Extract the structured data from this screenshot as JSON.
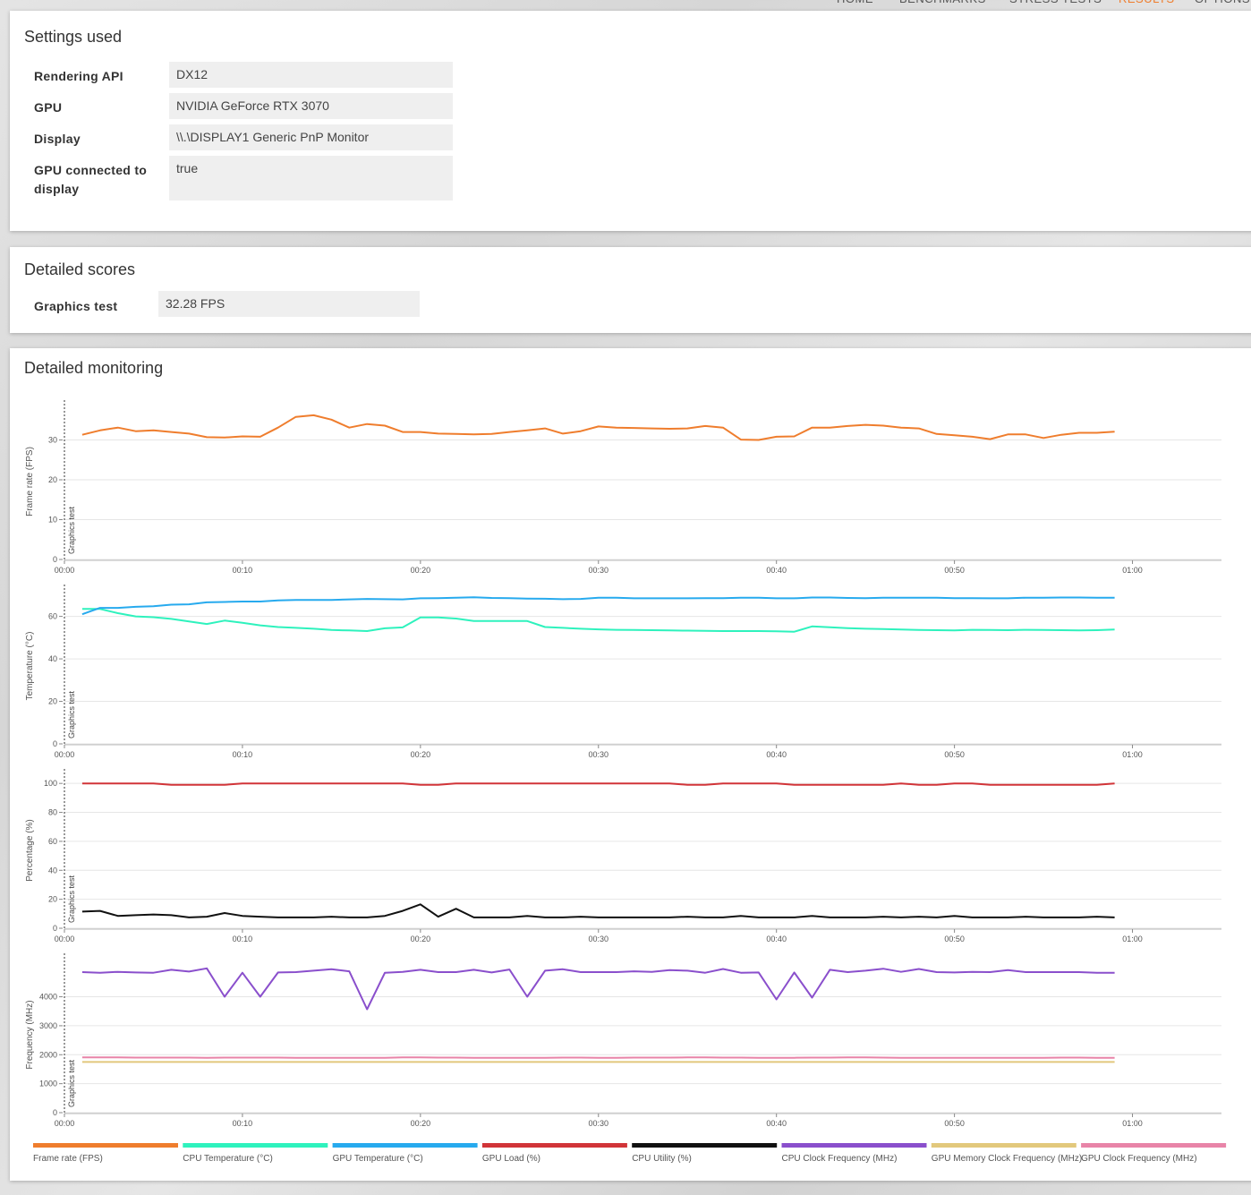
{
  "nav": [
    "HOME",
    "BENCHMARKS",
    "STRESS TESTS",
    "RESULTS",
    "OPTIONS"
  ],
  "settings": {
    "title": "Settings used",
    "rows": [
      [
        "Rendering API",
        "DX12"
      ],
      [
        "GPU",
        "NVIDIA GeForce RTX 3070"
      ],
      [
        "Display",
        "\\\\.\\DISPLAY1 Generic PnP Monitor"
      ],
      [
        "GPU connected to display",
        "true"
      ]
    ]
  },
  "scores": {
    "title": "Detailed scores",
    "rows": [
      [
        "Graphics test",
        "32.28 FPS"
      ]
    ]
  },
  "monitoring": {
    "title": "Detailed monitoring"
  },
  "chart_data": [
    {
      "type": "line",
      "y_label": "Frame rate (FPS)",
      "annotation": "Graphics test",
      "x": [
        1,
        2,
        3,
        4,
        5,
        6,
        7,
        8,
        9,
        10,
        11,
        12,
        13,
        14,
        15,
        16,
        17,
        18,
        19,
        20,
        21,
        22,
        23,
        24,
        25,
        26,
        27,
        28,
        29,
        30,
        31,
        32,
        33,
        34,
        35,
        36,
        37,
        38,
        39,
        40,
        41,
        42,
        43,
        44,
        45,
        46,
        47,
        48,
        49,
        50,
        51,
        52,
        53,
        54,
        55,
        56,
        57,
        58,
        59
      ],
      "xlim": [
        0,
        65
      ],
      "xticks": [
        {
          "value": 0,
          "label": "00:00"
        },
        {
          "value": 10,
          "label": "00:10"
        },
        {
          "value": 20,
          "label": "00:20"
        },
        {
          "value": 30,
          "label": "00:30"
        },
        {
          "value": 40,
          "label": "00:40"
        },
        {
          "value": 50,
          "label": "00:50"
        },
        {
          "value": 60,
          "label": "01:00"
        }
      ],
      "ylim": [
        0,
        40
      ],
      "yticks": [
        0,
        10,
        20,
        30
      ],
      "grid": true,
      "series": [
        {
          "name": "Frame rate (FPS)",
          "color": "#ef7d2d",
          "values": [
            31.3,
            32.4,
            33.1,
            32.2,
            32.4,
            32.0,
            31.6,
            30.7,
            30.6,
            30.9,
            30.8,
            33.1,
            35.8,
            36.2,
            35.1,
            33.1,
            34.0,
            33.6,
            32.0,
            32.0,
            31.6,
            31.5,
            31.4,
            31.5,
            32.0,
            32.4,
            32.9,
            31.6,
            32.2,
            33.4,
            33.1,
            33.0,
            32.9,
            32.8,
            32.9,
            33.5,
            33.1,
            30.1,
            30.0,
            30.8,
            30.9,
            33.1,
            33.1,
            33.5,
            33.8,
            33.6,
            33.1,
            32.9,
            31.5,
            31.2,
            30.8,
            30.2,
            31.4,
            31.4,
            30.5,
            31.3,
            31.8,
            31.8,
            32.1
          ]
        }
      ]
    },
    {
      "type": "line",
      "y_label": "Temperature (°C)",
      "annotation": "Graphics test",
      "x": [
        1,
        2,
        3,
        4,
        5,
        6,
        7,
        8,
        9,
        10,
        11,
        12,
        13,
        14,
        15,
        16,
        17,
        18,
        19,
        20,
        21,
        22,
        23,
        24,
        25,
        26,
        27,
        28,
        29,
        30,
        31,
        32,
        33,
        34,
        35,
        36,
        37,
        38,
        39,
        40,
        41,
        42,
        43,
        44,
        45,
        46,
        47,
        48,
        49,
        50,
        51,
        52,
        53,
        54,
        55,
        56,
        57,
        58,
        59
      ],
      "xlim": [
        0,
        65
      ],
      "xticks": [
        {
          "value": 0,
          "label": "00:00"
        },
        {
          "value": 10,
          "label": "00:10"
        },
        {
          "value": 20,
          "label": "00:20"
        },
        {
          "value": 30,
          "label": "00:30"
        },
        {
          "value": 40,
          "label": "00:40"
        },
        {
          "value": 50,
          "label": "00:50"
        },
        {
          "value": 60,
          "label": "01:00"
        }
      ],
      "ylim": [
        0,
        75
      ],
      "yticks": [
        0,
        20,
        40,
        60
      ],
      "grid": true,
      "series": [
        {
          "name": "CPU Temperature (°C)",
          "color": "#2ef2bd",
          "values": [
            63.5,
            63.5,
            61.5,
            60,
            59.6,
            58.8,
            57.6,
            56.4,
            58,
            57,
            55.8,
            55,
            54.6,
            54.2,
            53.6,
            53.4,
            53.1,
            54.4,
            54.8,
            59.5,
            59.5,
            59,
            57.8,
            57.8,
            57.8,
            57.8,
            55,
            54.6,
            54.2,
            53.9,
            53.7,
            53.6,
            53.5,
            53.4,
            53.3,
            53.2,
            53.1,
            53.1,
            53.1,
            53,
            52.8,
            55.3,
            54.9,
            54.5,
            54.2,
            54,
            53.8,
            53.6,
            53.5,
            53.4,
            53.7,
            53.6,
            53.5,
            53.7,
            53.6,
            53.5,
            53.4,
            53.5,
            53.8
          ]
        },
        {
          "name": "GPU Temperature (°C)",
          "color": "#27aaee",
          "values": [
            61,
            64,
            64,
            64.5,
            64.8,
            65.5,
            65.7,
            66.6,
            66.8,
            67,
            67,
            67.5,
            67.7,
            67.7,
            67.7,
            68,
            68.2,
            68.1,
            68,
            68.5,
            68.6,
            68.8,
            69,
            68.7,
            68.6,
            68.4,
            68.3,
            68.1,
            68.2,
            68.8,
            68.8,
            68.5,
            68.5,
            68.5,
            68.5,
            68.6,
            68.6,
            68.8,
            68.8,
            68.5,
            68.5,
            68.9,
            68.9,
            68.7,
            68.6,
            68.8,
            68.8,
            68.8,
            68.8,
            68.6,
            68.6,
            68.5,
            68.5,
            68.8,
            68.8,
            68.9,
            68.9,
            68.8,
            68.8
          ]
        }
      ]
    },
    {
      "type": "line",
      "y_label": "Percentage (%)",
      "annotation": "Graphics test",
      "x": [
        1,
        2,
        3,
        4,
        5,
        6,
        7,
        8,
        9,
        10,
        11,
        12,
        13,
        14,
        15,
        16,
        17,
        18,
        19,
        20,
        21,
        22,
        23,
        24,
        25,
        26,
        27,
        28,
        29,
        30,
        31,
        32,
        33,
        34,
        35,
        36,
        37,
        38,
        39,
        40,
        41,
        42,
        43,
        44,
        45,
        46,
        47,
        48,
        49,
        50,
        51,
        52,
        53,
        54,
        55,
        56,
        57,
        58,
        59
      ],
      "xlim": [
        0,
        65
      ],
      "xticks": [
        {
          "value": 0,
          "label": "00:00"
        },
        {
          "value": 10,
          "label": "00:10"
        },
        {
          "value": 20,
          "label": "00:20"
        },
        {
          "value": 30,
          "label": "00:30"
        },
        {
          "value": 40,
          "label": "00:40"
        },
        {
          "value": 50,
          "label": "00:50"
        },
        {
          "value": 60,
          "label": "01:00"
        }
      ],
      "ylim": [
        0,
        110
      ],
      "yticks": [
        0,
        20,
        40,
        60,
        80,
        100
      ],
      "grid": true,
      "series": [
        {
          "name": "GPU Load (%)",
          "color": "#d13438",
          "values": [
            100,
            100,
            100,
            100,
            100,
            99,
            99,
            99,
            99,
            100,
            100,
            100,
            100,
            100,
            100,
            100,
            100,
            100,
            100,
            99,
            99,
            100,
            100,
            100,
            100,
            100,
            100,
            100,
            100,
            100,
            100,
            100,
            100,
            100,
            99,
            99,
            100,
            100,
            100,
            100,
            99,
            99,
            99,
            99,
            99,
            99,
            100,
            99,
            99,
            100,
            100,
            99,
            99,
            99,
            99,
            99,
            99,
            99,
            100
          ]
        },
        {
          "name": "CPU Utility (%)",
          "color": "#111111",
          "values": [
            11.5,
            12,
            8.5,
            9,
            9.5,
            9,
            7.5,
            8,
            10.5,
            8.5,
            8,
            7.5,
            7.5,
            7.5,
            8,
            7.5,
            7.5,
            8.5,
            12,
            16.5,
            8,
            13.5,
            7.5,
            7.5,
            7.5,
            8.5,
            7.5,
            7.5,
            8,
            7.5,
            7.5,
            7.5,
            7.5,
            7.5,
            8,
            7.5,
            7.5,
            8.5,
            7.5,
            7.5,
            7.5,
            8.5,
            7.5,
            7.5,
            7.5,
            8,
            7.5,
            8,
            7.5,
            8.5,
            7.5,
            7.5,
            7.5,
            8,
            7.5,
            7.5,
            7.5,
            8,
            7.5
          ]
        }
      ]
    },
    {
      "type": "line",
      "y_label": "Frequency (MHz)",
      "annotation": "Graphics test",
      "x": [
        1,
        2,
        3,
        4,
        5,
        6,
        7,
        8,
        9,
        10,
        11,
        12,
        13,
        14,
        15,
        16,
        17,
        18,
        19,
        20,
        21,
        22,
        23,
        24,
        25,
        26,
        27,
        28,
        29,
        30,
        31,
        32,
        33,
        34,
        35,
        36,
        37,
        38,
        39,
        40,
        41,
        42,
        43,
        44,
        45,
        46,
        47,
        48,
        49,
        50,
        51,
        52,
        53,
        54,
        55,
        56,
        57,
        58,
        59
      ],
      "xlim": [
        0,
        65
      ],
      "xticks": [
        {
          "value": 0,
          "label": "00:00"
        },
        {
          "value": 10,
          "label": "00:10"
        },
        {
          "value": 20,
          "label": "00:20"
        },
        {
          "value": 30,
          "label": "00:30"
        },
        {
          "value": 40,
          "label": "00:40"
        },
        {
          "value": 50,
          "label": "00:50"
        },
        {
          "value": 60,
          "label": "01:00"
        }
      ],
      "ylim": [
        0,
        5500
      ],
      "yticks": [
        0,
        1000,
        2000,
        3000,
        4000
      ],
      "grid": true,
      "series": [
        {
          "name": "CPU Clock Frequency (MHz)",
          "color": "#8a4fcc",
          "values": [
            4850,
            4830,
            4860,
            4840,
            4830,
            4930,
            4870,
            4980,
            4000,
            4830,
            4000,
            4840,
            4850,
            4900,
            4950,
            4880,
            3570,
            4830,
            4860,
            4930,
            4850,
            4850,
            4930,
            4840,
            4940,
            4000,
            4900,
            4950,
            4850,
            4850,
            4850,
            4880,
            4860,
            4920,
            4900,
            4830,
            4960,
            4830,
            4840,
            3910,
            4840,
            3970,
            4930,
            4850,
            4900,
            4970,
            4860,
            4960,
            4850,
            4840,
            4860,
            4850,
            4920,
            4850,
            4850,
            4850,
            4850,
            4830,
            4830
          ]
        },
        {
          "name": "GPU Memory Clock Frequency (MHz)",
          "color": "#e2c87c",
          "values": [
            1750,
            1750,
            1750,
            1750,
            1750,
            1750,
            1750,
            1750,
            1750,
            1750,
            1750,
            1750,
            1750,
            1750,
            1750,
            1750,
            1750,
            1750,
            1750,
            1750,
            1750,
            1750,
            1750,
            1750,
            1750,
            1750,
            1750,
            1750,
            1750,
            1750,
            1750,
            1750,
            1750,
            1750,
            1750,
            1750,
            1750,
            1750,
            1750,
            1750,
            1750,
            1750,
            1750,
            1750,
            1750,
            1750,
            1750,
            1750,
            1750,
            1750,
            1750,
            1750,
            1750,
            1750,
            1750,
            1750,
            1750,
            1750,
            1750
          ]
        },
        {
          "name": "GPU Clock Frequency (MHz)",
          "color": "#e884a8",
          "values": [
            1910,
            1905,
            1905,
            1900,
            1900,
            1900,
            1900,
            1895,
            1900,
            1900,
            1900,
            1900,
            1895,
            1890,
            1890,
            1890,
            1890,
            1895,
            1910,
            1905,
            1900,
            1900,
            1895,
            1895,
            1895,
            1895,
            1895,
            1900,
            1900,
            1895,
            1895,
            1900,
            1900,
            1900,
            1905,
            1905,
            1900,
            1900,
            1895,
            1895,
            1895,
            1900,
            1900,
            1905,
            1905,
            1900,
            1895,
            1895,
            1895,
            1895,
            1895,
            1890,
            1890,
            1895,
            1895,
            1900,
            1900,
            1895,
            1890
          ]
        }
      ]
    }
  ]
}
